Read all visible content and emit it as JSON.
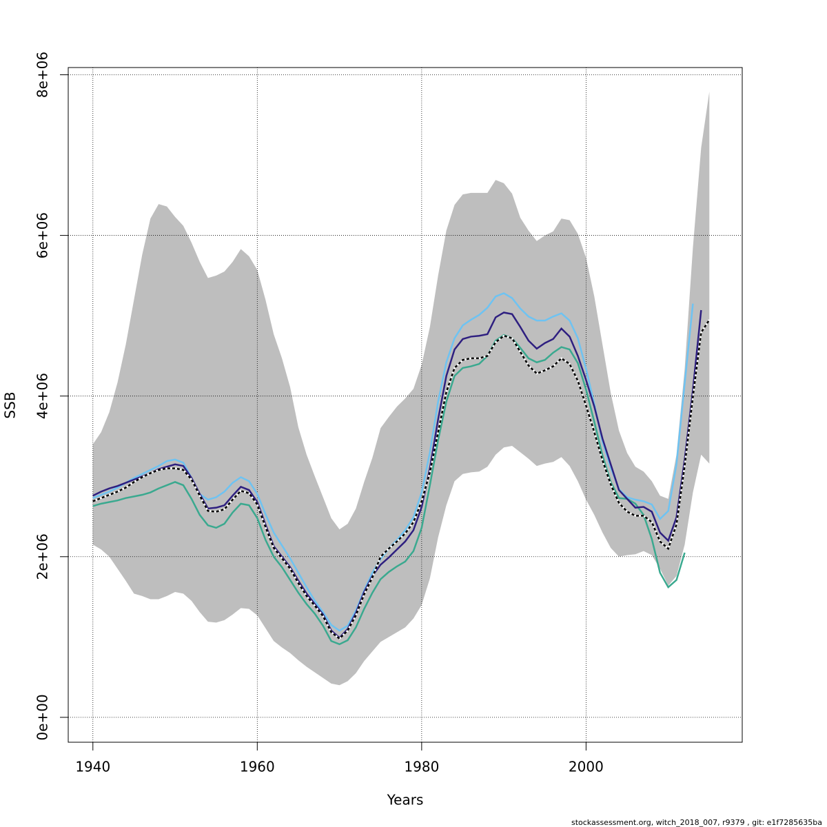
{
  "chart_data": {
    "type": "line",
    "x_label": "Years",
    "y_label": "SSB",
    "footer": "stockassessment.org, witch_2018_007, r9379 , git: e1f7285635ba",
    "xlim": [
      1937,
      2019
    ],
    "ylim": [
      -310000.0,
      8090000.0
    ],
    "xticks": [
      1940,
      1960,
      1980,
      2000
    ],
    "yticks": [
      {
        "value": 0,
        "label": "0e+00"
      },
      {
        "value": 2000000.0,
        "label": "2e+06"
      },
      {
        "value": 4000000.0,
        "label": "4e+06"
      },
      {
        "value": 6000000.0,
        "label": "6e+06"
      },
      {
        "value": 8000000.0,
        "label": "8e+06"
      }
    ],
    "grid": true,
    "x": [
      1940,
      1941,
      1942,
      1943,
      1944,
      1945,
      1946,
      1947,
      1948,
      1949,
      1950,
      1951,
      1952,
      1953,
      1954,
      1955,
      1956,
      1957,
      1958,
      1959,
      1960,
      1961,
      1962,
      1963,
      1964,
      1965,
      1966,
      1967,
      1968,
      1969,
      1970,
      1971,
      1972,
      1973,
      1974,
      1975,
      1976,
      1977,
      1978,
      1979,
      1980,
      1981,
      1982,
      1983,
      1984,
      1985,
      1986,
      1987,
      1988,
      1989,
      1990,
      1991,
      1992,
      1993,
      1994,
      1995,
      1996,
      1997,
      1998,
      1999,
      2000,
      2001,
      2002,
      2003,
      2004,
      2005,
      2006,
      2007,
      2008,
      2009,
      2010,
      2011,
      2012,
      2013,
      2014,
      2015
    ],
    "band": {
      "color": "#bebebe",
      "upper": [
        3400000.0,
        3550000.0,
        3800000.0,
        4170000.0,
        4640000.0,
        5200000.0,
        5760000.0,
        6210000.0,
        6390000.0,
        6360000.0,
        6230000.0,
        6120000.0,
        5910000.0,
        5670000.0,
        5470000.0,
        5500000.0,
        5550000.0,
        5670000.0,
        5830000.0,
        5740000.0,
        5570000.0,
        5200000.0,
        4770000.0,
        4470000.0,
        4110000.0,
        3610000.0,
        3270000.0,
        3000000.0,
        2740000.0,
        2480000.0,
        2340000.0,
        2410000.0,
        2600000.0,
        2930000.0,
        3230000.0,
        3600000.0,
        3740000.0,
        3870000.0,
        3970000.0,
        4090000.0,
        4390000.0,
        4860000.0,
        5500000.0,
        6060000.0,
        6380000.0,
        6510000.0,
        6530000.0,
        6530000.0,
        6530000.0,
        6690000.0,
        6650000.0,
        6520000.0,
        6220000.0,
        6060000.0,
        5930000.0,
        6000000.0,
        6050000.0,
        6210000.0,
        6190000.0,
        6020000.0,
        5720000.0,
        5240000.0,
        4640000.0,
        4040000.0,
        3570000.0,
        3290000.0,
        3120000.0,
        3060000.0,
        2940000.0,
        2760000.0,
        2720000.0,
        3270000.0,
        4340000.0,
        5850000.0,
        7090000.0,
        7790000.0
      ],
      "lower": [
        2150000.0,
        2090000.0,
        2000000.0,
        1850000.0,
        1700000.0,
        1540000.0,
        1510000.0,
        1470000.0,
        1470000.0,
        1510000.0,
        1560000.0,
        1540000.0,
        1450000.0,
        1310000.0,
        1190000.0,
        1180000.0,
        1210000.0,
        1280000.0,
        1360000.0,
        1350000.0,
        1270000.0,
        1110000.0,
        950000.0,
        870000.0,
        800000.0,
        710000.0,
        630000.0,
        560000.0,
        490000.0,
        420000.0,
        400000.0,
        450000.0,
        550000.0,
        700000.0,
        820000.0,
        940000.0,
        1000000.0,
        1060000.0,
        1120000.0,
        1230000.0,
        1400000.0,
        1730000.0,
        2240000.0,
        2640000.0,
        2940000.0,
        3030000.0,
        3050000.0,
        3060000.0,
        3120000.0,
        3270000.0,
        3360000.0,
        3380000.0,
        3300000.0,
        3220000.0,
        3130000.0,
        3160000.0,
        3180000.0,
        3240000.0,
        3130000.0,
        2940000.0,
        2710000.0,
        2520000.0,
        2300000.0,
        2110000.0,
        2000000.0,
        2020000.0,
        2030000.0,
        2070000.0,
        2020000.0,
        1850000.0,
        1640000.0,
        1760000.0,
        2150000.0,
        2800000.0,
        3270000.0,
        3160000.0
      ]
    },
    "series": [
      {
        "color": "#3aa98f",
        "values": [
          2630000.0,
          2660000.0,
          2680000.0,
          2700000.0,
          2730000.0,
          2750000.0,
          2770000.0,
          2800000.0,
          2850000.0,
          2890000.0,
          2930000.0,
          2890000.0,
          2720000.0,
          2520000.0,
          2390000.0,
          2360000.0,
          2410000.0,
          2550000.0,
          2660000.0,
          2640000.0,
          2480000.0,
          2210000.0,
          2000000.0,
          1870000.0,
          1710000.0,
          1550000.0,
          1410000.0,
          1290000.0,
          1140000.0,
          950000.0,
          910000.0,
          960000.0,
          1120000.0,
          1350000.0,
          1550000.0,
          1720000.0,
          1810000.0,
          1880000.0,
          1940000.0,
          2070000.0,
          2360000.0,
          2890000.0,
          3450000.0,
          3930000.0,
          4250000.0,
          4350000.0,
          4370000.0,
          4400000.0,
          4500000.0,
          4690000.0,
          4760000.0,
          4720000.0,
          4600000.0,
          4470000.0,
          4420000.0,
          4450000.0,
          4540000.0,
          4610000.0,
          4580000.0,
          4410000.0,
          4080000.0,
          3680000.0,
          3260000.0,
          2930000.0,
          2730000.0,
          2720000.0,
          2660000.0,
          2520000.0,
          2220000.0,
          1800000.0,
          1620000.0,
          1710000.0,
          2050000.0,
          null,
          null,
          null
        ]
      },
      {
        "color": "#6ec3f2",
        "values": [
          2730000.0,
          2770000.0,
          2810000.0,
          2860000.0,
          2920000.0,
          2980000.0,
          3030000.0,
          3080000.0,
          3130000.0,
          3190000.0,
          3210000.0,
          3170000.0,
          2980000.0,
          2780000.0,
          2710000.0,
          2740000.0,
          2810000.0,
          2920000.0,
          2990000.0,
          2940000.0,
          2780000.0,
          2530000.0,
          2300000.0,
          2140000.0,
          1980000.0,
          1800000.0,
          1620000.0,
          1450000.0,
          1310000.0,
          1150000.0,
          1080000.0,
          1140000.0,
          1330000.0,
          1580000.0,
          1800000.0,
          1970000.0,
          2100000.0,
          2210000.0,
          2330000.0,
          2490000.0,
          2800000.0,
          3300000.0,
          3930000.0,
          4420000.0,
          4720000.0,
          4880000.0,
          4950000.0,
          5010000.0,
          5100000.0,
          5240000.0,
          5280000.0,
          5220000.0,
          5090000.0,
          4990000.0,
          4940000.0,
          4940000.0,
          4990000.0,
          5030000.0,
          4940000.0,
          4720000.0,
          4340000.0,
          3900000.0,
          3430000.0,
          3110000.0,
          2840000.0,
          2740000.0,
          2710000.0,
          2690000.0,
          2650000.0,
          2470000.0,
          2570000.0,
          3150000.0,
          4160000.0,
          5150000.0,
          null,
          null
        ]
      },
      {
        "color": "#2e1f80",
        "values": [
          2760000.0,
          2810000.0,
          2850000.0,
          2880000.0,
          2920000.0,
          2960000.0,
          3000000.0,
          3040000.0,
          3090000.0,
          3120000.0,
          3150000.0,
          3130000.0,
          2980000.0,
          2780000.0,
          2600000.0,
          2610000.0,
          2640000.0,
          2760000.0,
          2870000.0,
          2830000.0,
          2680000.0,
          2400000.0,
          2130000.0,
          2000000.0,
          1870000.0,
          1700000.0,
          1540000.0,
          1410000.0,
          1280000.0,
          1080000.0,
          990000.0,
          1100000.0,
          1300000.0,
          1560000.0,
          1760000.0,
          1900000.0,
          1990000.0,
          2090000.0,
          2190000.0,
          2330000.0,
          2620000.0,
          3100000.0,
          3710000.0,
          4250000.0,
          4580000.0,
          4710000.0,
          4740000.0,
          4750000.0,
          4770000.0,
          4980000.0,
          5040000.0,
          5020000.0,
          4860000.0,
          4690000.0,
          4590000.0,
          4660000.0,
          4710000.0,
          4840000.0,
          4740000.0,
          4500000.0,
          4200000.0,
          3870000.0,
          3470000.0,
          3150000.0,
          2830000.0,
          2720000.0,
          2610000.0,
          2620000.0,
          2560000.0,
          2300000.0,
          2200000.0,
          2490000.0,
          3210000.0,
          4080000.0,
          5070000.0,
          null
        ]
      },
      {
        "color": "#000000",
        "dashed": true,
        "values": [
          2690000.0,
          2730000.0,
          2770000.0,
          2810000.0,
          2860000.0,
          2930000.0,
          2990000.0,
          3040000.0,
          3080000.0,
          3100000.0,
          3100000.0,
          3080000.0,
          2960000.0,
          2760000.0,
          2570000.0,
          2560000.0,
          2590000.0,
          2710000.0,
          2820000.0,
          2790000.0,
          2650000.0,
          2370000.0,
          2110000.0,
          1980000.0,
          1850000.0,
          1670000.0,
          1510000.0,
          1390000.0,
          1260000.0,
          1060000.0,
          980000.0,
          1080000.0,
          1270000.0,
          1530000.0,
          1740000.0,
          2000000.0,
          2100000.0,
          2190000.0,
          2290000.0,
          2430000.0,
          2690000.0,
          3050000.0,
          3550000.0,
          4050000.0,
          4350000.0,
          4450000.0,
          4470000.0,
          4470000.0,
          4500000.0,
          4670000.0,
          4750000.0,
          4720000.0,
          4550000.0,
          4380000.0,
          4280000.0,
          4320000.0,
          4370000.0,
          4470000.0,
          4400000.0,
          4190000.0,
          3880000.0,
          3550000.0,
          3200000.0,
          2900000.0,
          2670000.0,
          2560000.0,
          2510000.0,
          2510000.0,
          2430000.0,
          2190000.0,
          2100000.0,
          2400000.0,
          3130000.0,
          3990000.0,
          4790000.0,
          4950000.0
        ]
      }
    ]
  }
}
